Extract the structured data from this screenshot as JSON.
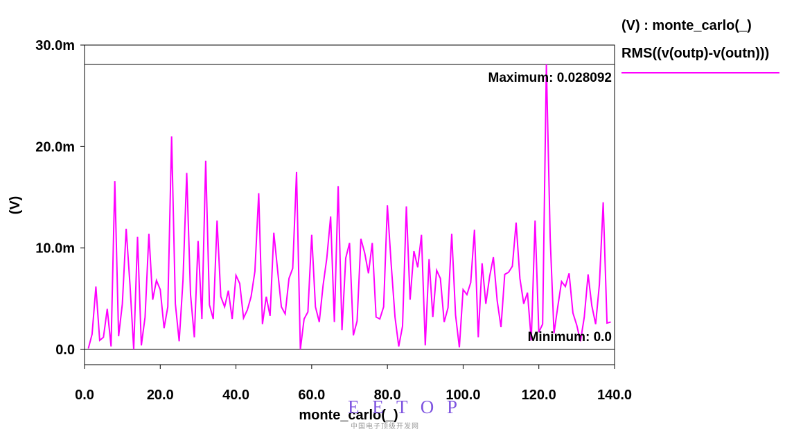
{
  "chart_data": {
    "type": "line",
    "xlabel": "monte_carlo(_)",
    "ylabel": "(V)",
    "xlim": [
      0,
      140
    ],
    "ylim": [
      -0.0015,
      0.03
    ],
    "x_ticks": [
      {
        "value": 0,
        "label": "0.0"
      },
      {
        "value": 20,
        "label": "20.0"
      },
      {
        "value": 40,
        "label": "40.0"
      },
      {
        "value": 60,
        "label": "60.0"
      },
      {
        "value": 80,
        "label": "80.0"
      },
      {
        "value": 100,
        "label": "100.0"
      },
      {
        "value": 120,
        "label": "120.0"
      },
      {
        "value": 140,
        "label": "140.0"
      }
    ],
    "y_ticks": [
      {
        "value": 0,
        "label": "0.0"
      },
      {
        "value": 0.01,
        "label": "10.0m"
      },
      {
        "value": 0.02,
        "label": "20.0m"
      },
      {
        "value": 0.03,
        "label": "30.0m"
      }
    ],
    "grid": false,
    "legend_position": "right",
    "legend_header": "(V) : monte_carlo(_)",
    "series": [
      {
        "name": "RMS((v(outp)-v(outn)))",
        "color": "#ff00ff",
        "x": [
          1,
          2,
          3,
          4,
          5,
          6,
          7,
          8,
          9,
          10,
          11,
          12,
          13,
          14,
          15,
          16,
          17,
          18,
          19,
          20,
          21,
          22,
          23,
          24,
          25,
          26,
          27,
          28,
          29,
          30,
          31,
          32,
          33,
          34,
          35,
          36,
          37,
          38,
          39,
          40,
          41,
          42,
          43,
          44,
          45,
          46,
          47,
          48,
          49,
          50,
          51,
          52,
          53,
          54,
          55,
          56,
          57,
          58,
          59,
          60,
          61,
          62,
          63,
          64,
          65,
          66,
          67,
          68,
          69,
          70,
          71,
          72,
          73,
          74,
          75,
          76,
          77,
          78,
          79,
          80,
          81,
          82,
          83,
          84,
          85,
          86,
          87,
          88,
          89,
          90,
          91,
          92,
          93,
          94,
          95,
          96,
          97,
          98,
          99,
          100,
          101,
          102,
          103,
          104,
          105,
          106,
          107,
          108,
          109,
          110,
          111,
          112,
          113,
          114,
          115,
          116,
          117,
          118,
          119,
          120,
          121,
          122,
          123,
          124,
          125,
          126,
          127,
          128,
          129,
          130,
          131,
          132,
          133,
          134,
          135,
          136,
          137,
          138,
          139
        ],
        "y": [
          0.0001,
          0.0015,
          0.0062,
          0.0009,
          0.0012,
          0.004,
          0.0003,
          0.0166,
          0.0013,
          0.0045,
          0.0119,
          0.0064,
          0.0,
          0.0111,
          0.0004,
          0.0032,
          0.0114,
          0.0049,
          0.0068,
          0.0059,
          0.0021,
          0.0042,
          0.021,
          0.0045,
          0.0008,
          0.0068,
          0.0174,
          0.0054,
          0.0012,
          0.0107,
          0.003,
          0.0186,
          0.0044,
          0.003,
          0.0127,
          0.0052,
          0.0042,
          0.0058,
          0.003,
          0.0073,
          0.0065,
          0.0031,
          0.0039,
          0.0052,
          0.0077,
          0.0154,
          0.0025,
          0.0052,
          0.0033,
          0.0115,
          0.0078,
          0.0042,
          0.0035,
          0.007,
          0.008,
          0.0175,
          0.0,
          0.003,
          0.0037,
          0.0113,
          0.0042,
          0.0027,
          0.0063,
          0.009,
          0.0131,
          0.0027,
          0.0161,
          0.0019,
          0.009,
          0.0105,
          0.0014,
          0.0028,
          0.0109,
          0.0095,
          0.0075,
          0.0105,
          0.0032,
          0.003,
          0.0042,
          0.0142,
          0.0084,
          0.0032,
          0.0003,
          0.0023,
          0.0141,
          0.0049,
          0.0097,
          0.0081,
          0.0113,
          0.0004,
          0.0089,
          0.0032,
          0.0078,
          0.007,
          0.0027,
          0.0041,
          0.0114,
          0.0034,
          0.0002,
          0.0059,
          0.0054,
          0.0066,
          0.0118,
          0.0012,
          0.0085,
          0.0045,
          0.0072,
          0.0091,
          0.0048,
          0.0022,
          0.0074,
          0.0076,
          0.0082,
          0.0125,
          0.007,
          0.0045,
          0.0056,
          0.0009,
          0.0127,
          0.0017,
          0.0025,
          0.0281,
          0.011,
          0.0016,
          0.0042,
          0.0067,
          0.0062,
          0.0075,
          0.0036,
          0.0024,
          0.0008,
          0.0032,
          0.0074,
          0.0043,
          0.0025,
          0.0064,
          0.0145,
          0.0026,
          0.0027
        ]
      }
    ],
    "annotations": [
      {
        "id": "max",
        "label": "Maximum: 0.028092",
        "value": 0.028092
      },
      {
        "id": "min",
        "label": "Minimum: 0.0",
        "value": 0.0
      }
    ]
  },
  "watermark": {
    "text": "E E T O P",
    "subtext": "中国电子顶级开发网",
    "color": "#7f55e0"
  }
}
